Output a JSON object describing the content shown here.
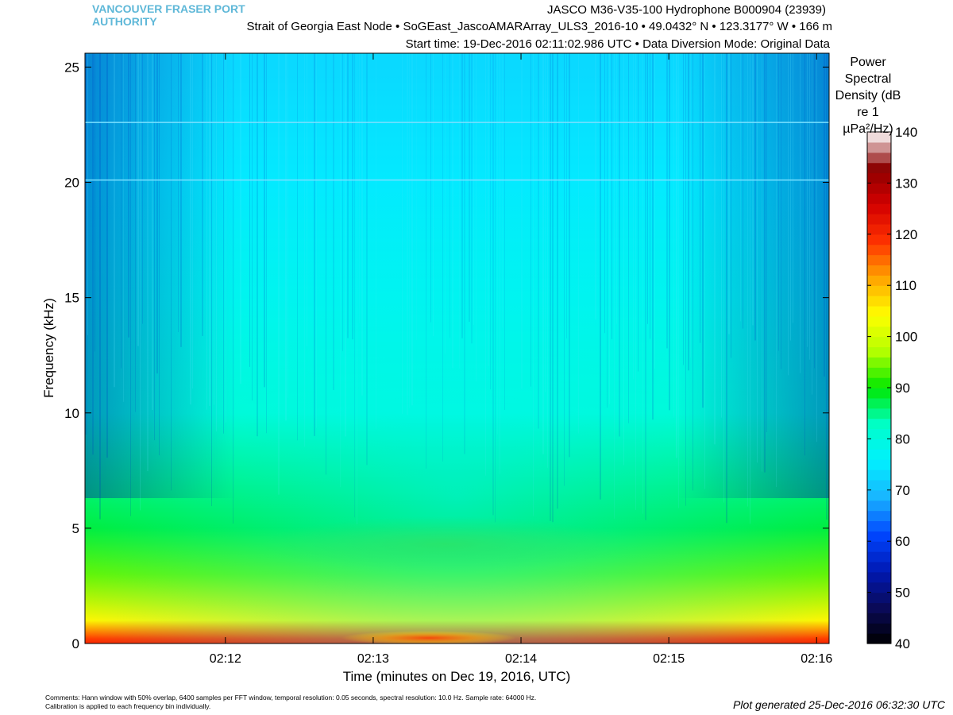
{
  "org": {
    "line1": "VANCOUVER FRASER PORT",
    "line2": "AUTHORITY"
  },
  "header": {
    "line1": "JASCO M36-V35-100 Hydrophone B000904 (23939)",
    "line2": "Strait of Georgia East Node  •  SoGEast_JascoAMARArray_ULS3_2016-10  •  49.0432° N  •  123.3177° W  •  166 m",
    "line3": "Start time: 19-Dec-2016 02:11:02.986 UTC  •  Data Diversion Mode: Original Data"
  },
  "colorbar": {
    "title_lines": [
      "Power",
      "Spectral",
      "Density (dB",
      "re 1 µPa²/Hz)"
    ],
    "range": [
      40,
      140
    ],
    "ticks": [
      "140",
      "130",
      "120",
      "110",
      "100",
      "90",
      "80",
      "70",
      "60",
      "50",
      "40"
    ],
    "scheme": [
      "#000000",
      "#0a0a5a",
      "#0019b4",
      "#0046ff",
      "#1ab4ff",
      "#00f0ff",
      "#00ffc8",
      "#00e800",
      "#b4ff00",
      "#ffff00",
      "#ffa500",
      "#ff3200",
      "#d40000",
      "#8c0000",
      "#ffffff"
    ]
  },
  "chart_data": {
    "type": "heatmap",
    "xlabel": "Time (minutes on Dec 19, 2016, UTC)",
    "ylabel": "Frequency (kHz)",
    "x_tick_labels": [
      "02:12",
      "02:13",
      "02:14",
      "02:15",
      "02:16"
    ],
    "y_tick_labels": [
      "0",
      "5",
      "10",
      "15",
      "20",
      "25"
    ],
    "ylim": [
      0,
      25.6
    ],
    "xlim": [
      "02:11:02",
      "02:16:04"
    ],
    "grid": false,
    "tonal_lines_khz": [
      22.6,
      20.1
    ],
    "level_profile_db": [
      {
        "freq_khz": 0.2,
        "db": 118
      },
      {
        "freq_khz": 1,
        "db": 105
      },
      {
        "freq_khz": 3,
        "db": 94
      },
      {
        "freq_khz": 5,
        "db": 88
      },
      {
        "freq_khz": 10,
        "db": 82
      },
      {
        "freq_khz": 15,
        "db": 78
      },
      {
        "freq_khz": 20,
        "db": 75
      },
      {
        "freq_khz": 25,
        "db": 73
      }
    ]
  },
  "footnote": {
    "line1": "Comments: Hann window with 50% overlap, 6400 samples per FFT window, temporal resolution: 0.05 seconds, spectral resolution: 10.0 Hz. Sample rate: 64000 Hz.",
    "line2": "Calibration is applied to each frequency bin individually."
  },
  "generated": "Plot generated 25-Dec-2016 06:32:30 UTC"
}
